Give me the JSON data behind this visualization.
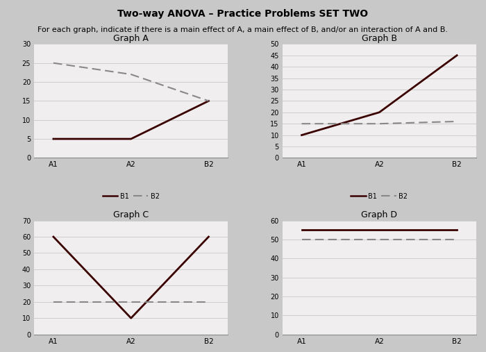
{
  "title": "Two-way ANOVA – Practice Problems SET TWO",
  "subtitle": "For each graph, indicate if there is a main effect of A, a main effect of B, and/or an interaction of A and B.",
  "x_labels": [
    "A1",
    "A2",
    "B2"
  ],
  "graphs": {
    "A": {
      "title": "Graph A",
      "B1": [
        5,
        5,
        15
      ],
      "B2": [
        25,
        22,
        15
      ],
      "ylim": [
        0,
        30
      ],
      "yticks": [
        0,
        5,
        10,
        15,
        20,
        25,
        30
      ]
    },
    "B": {
      "title": "Graph B",
      "B1": [
        10,
        20,
        45
      ],
      "B2": [
        15,
        15,
        16
      ],
      "ylim": [
        0,
        50
      ],
      "yticks": [
        0,
        5,
        10,
        15,
        20,
        25,
        30,
        35,
        40,
        45,
        50
      ]
    },
    "C": {
      "title": "Graph C",
      "B1": [
        60,
        10,
        60
      ],
      "B2": [
        20,
        20,
        20
      ],
      "ylim": [
        0,
        70
      ],
      "yticks": [
        0,
        10,
        20,
        30,
        40,
        50,
        60,
        70
      ]
    },
    "D": {
      "title": "Graph D",
      "B1": [
        55,
        55,
        55
      ],
      "B2": [
        50,
        50,
        50
      ],
      "ylim": [
        0,
        60
      ],
      "yticks": [
        0,
        10,
        20,
        30,
        40,
        50,
        60
      ]
    }
  },
  "line_color_B1": "#3a0000",
  "line_color_B2": "#888888",
  "page_bg": "#c8c8c8",
  "panel_bg": "#f0eeee",
  "title_fontsize": 10,
  "subtitle_fontsize": 8
}
